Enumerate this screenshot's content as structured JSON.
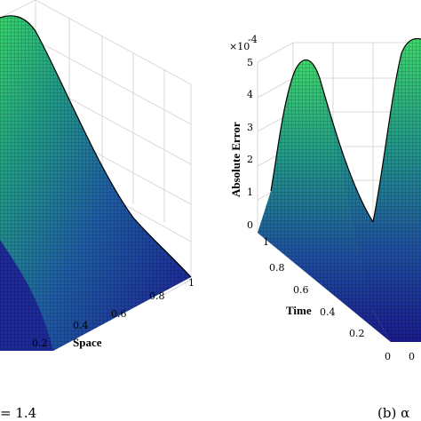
{
  "chart_data": [
    {
      "type": "surface",
      "panel": "left",
      "xlabel": "Space",
      "x_ticks": [
        "0.2",
        "0.4",
        "0.6",
        "0.8",
        "1"
      ],
      "xlim": [
        0,
        1
      ],
      "caption": "= 1.4",
      "grid": true,
      "colormap": [
        "#1a1a8c",
        "#1f4f9e",
        "#1f8a8a",
        "#2db07a",
        "#3ddc5c"
      ]
    },
    {
      "type": "surface",
      "panel": "right",
      "zlabel": "Absolute Error",
      "ylabel": "Time",
      "z_exponent_label": "×10",
      "z_exponent_power": "-4",
      "z_ticks": [
        "0",
        "1",
        "2",
        "3",
        "4",
        "5"
      ],
      "zlim": [
        0,
        5
      ],
      "y_ticks": [
        "1",
        "0.8",
        "0.6",
        "0.4",
        "0.2",
        "0"
      ],
      "ylim": [
        0,
        1
      ],
      "x_ticks_partial": [
        "0"
      ],
      "caption": "(b) α",
      "grid": true,
      "peak_values": [
        5.0,
        5.0
      ],
      "colormap": [
        "#1a1a8c",
        "#1f4f9e",
        "#1f8a8a",
        "#2db07a",
        "#3ddc5c"
      ]
    }
  ]
}
